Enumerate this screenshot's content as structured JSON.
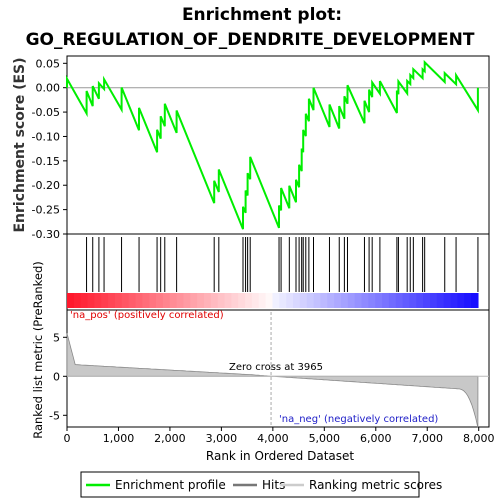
{
  "chart_data": {
    "type": "line",
    "title_line1": "Enrichment plot:",
    "title_line2": "GO_REGULATION_OF_DENDRITE_DEVELOPMENT",
    "es_panel": {
      "ylabel": "Enrichment score (ES)",
      "ylim": [
        -0.3,
        0.065
      ],
      "yticks": [
        0.05,
        0.0,
        -0.05,
        -0.1,
        -0.15,
        -0.2,
        -0.25,
        -0.3
      ],
      "ytick_labels": [
        "0.05",
        "0.00",
        "-0.05",
        "-0.10",
        "-0.15",
        "-0.20",
        "-0.25",
        "-0.30"
      ],
      "line_color": "#00ee00"
    },
    "rank_panel": {
      "ylabel": "Ranked list metric (PreRanked)",
      "xlabel": "Rank in Ordered Dataset",
      "ylim": [
        -6.5,
        8.5
      ],
      "yticks": [
        5,
        0,
        -5
      ],
      "ytick_labels": [
        "5",
        "0",
        "-5"
      ],
      "xlim": [
        0,
        8200
      ],
      "xticks": [
        0,
        1000,
        2000,
        3000,
        4000,
        5000,
        6000,
        7000,
        8000
      ],
      "xtick_labels": [
        "0",
        "1,000",
        "2,000",
        "3,000",
        "4,000",
        "5,000",
        "6,000",
        "7,000",
        "8,000"
      ],
      "pos_label": "'na_pos' (positively correlated)",
      "neg_label": "'na_neg' (negatively correlated)",
      "zero_cross_label": "Zero cross at 3965",
      "zero_cross": 3965,
      "total": 7985
    },
    "hits": [
      0,
      380,
      500,
      620,
      720,
      1060,
      1400,
      1750,
      1820,
      1900,
      2130,
      2860,
      2950,
      3420,
      3470,
      3510,
      3560,
      4120,
      4160,
      4320,
      4450,
      4510,
      4560,
      4590,
      4640,
      4700,
      4790,
      5100,
      5290,
      5390,
      5450,
      5780,
      5870,
      5930,
      6080,
      6410,
      6440,
      6610,
      6670,
      6730,
      6910,
      6950,
      7340,
      7560,
      7985
    ],
    "legend": [
      {
        "name": "Enrichment profile",
        "color": "#00ee00"
      },
      {
        "name": "Hits",
        "color": "#777777"
      },
      {
        "name": "Ranking metric scores",
        "color": "#cccccc"
      }
    ]
  }
}
